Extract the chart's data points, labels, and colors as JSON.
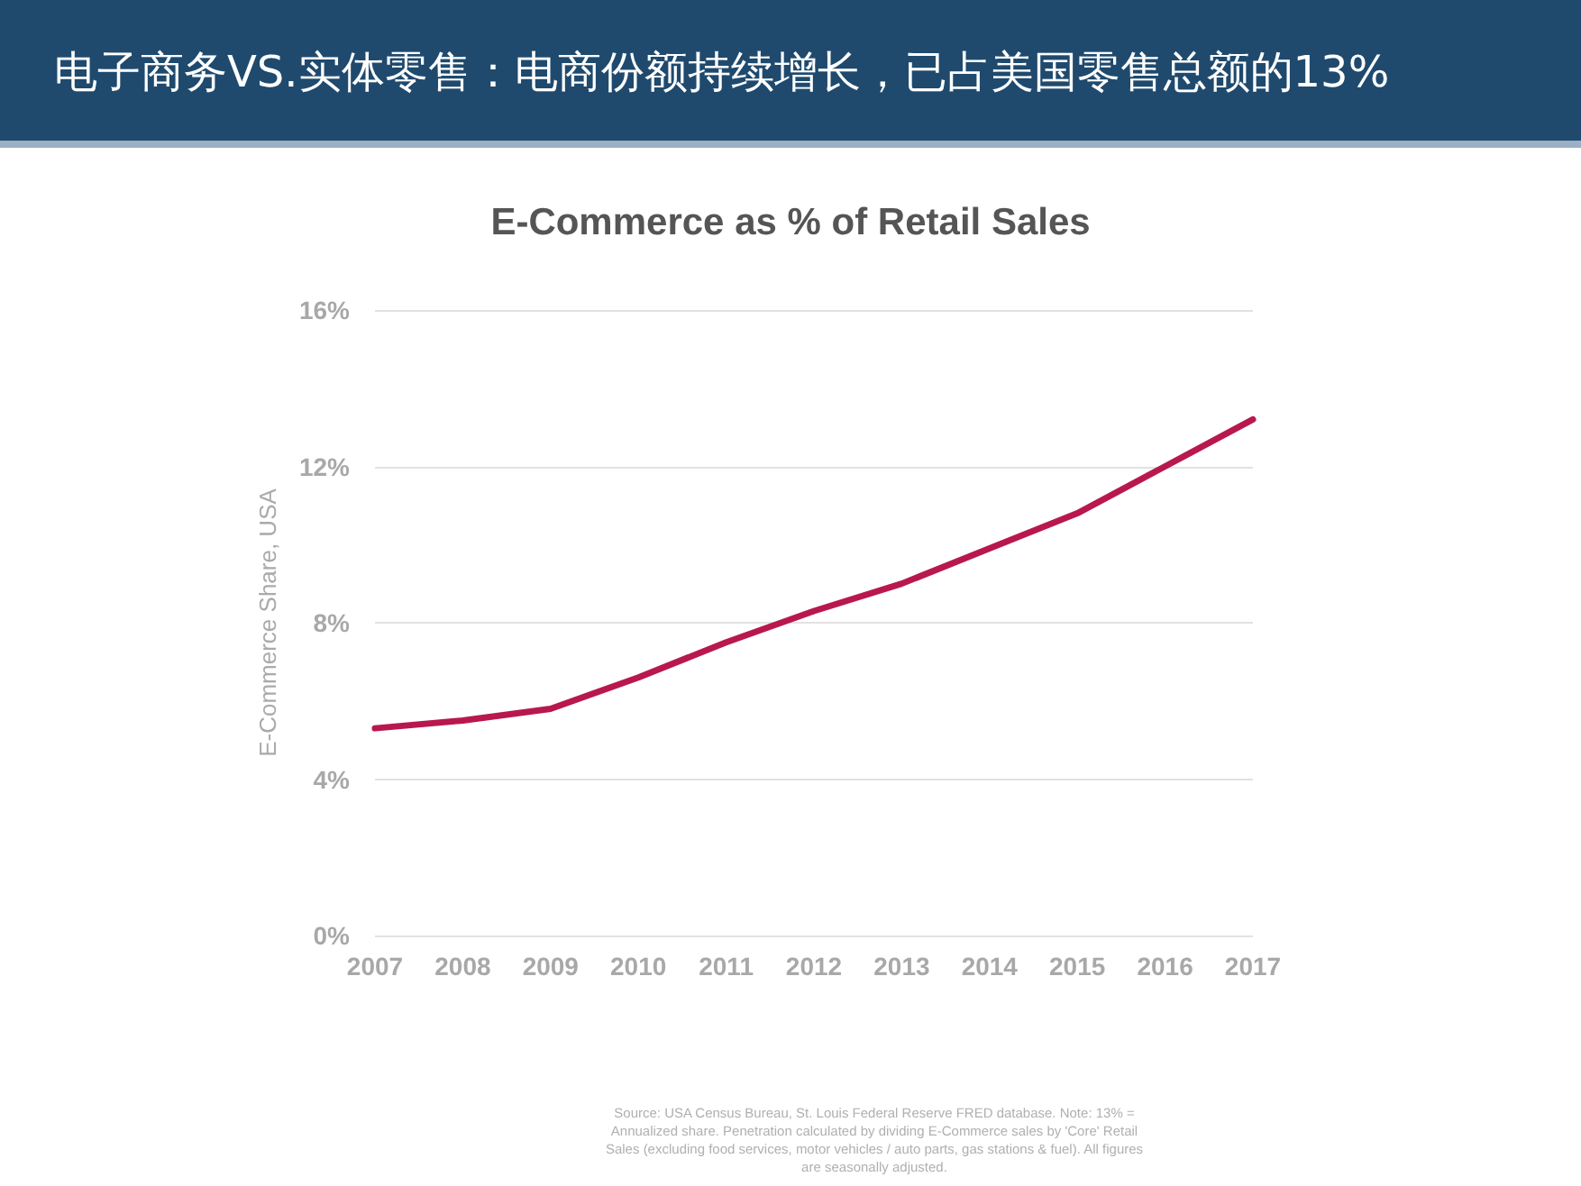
{
  "chart_data": {
    "type": "line",
    "title": "电子商务VS.实体零售：电商份额持续增长，已占美国零售总额的13%",
    "subtitle": "E-Commerce as % of Retail Sales",
    "ylabel": "E-Commerce Share, USA",
    "x": [
      2007,
      2008,
      2009,
      2010,
      2011,
      2012,
      2013,
      2014,
      2015,
      2016,
      2017
    ],
    "series": [
      {
        "color": "#b8184e",
        "values": [
          5.3,
          5.5,
          5.8,
          6.6,
          7.5,
          8.3,
          9.0,
          9.9,
          10.8,
          12.0,
          13.2
        ]
      }
    ],
    "xlim": [
      2007,
      2017
    ],
    "xticks": [
      2007,
      2008,
      2009,
      2010,
      2011,
      2012,
      2013,
      2014,
      2015,
      2016,
      2017
    ],
    "ylim": [
      0,
      16
    ],
    "yticks": [
      {
        "value": 0,
        "label": "0%"
      },
      {
        "value": 4,
        "label": "4%"
      },
      {
        "value": 8,
        "label": "8%"
      },
      {
        "value": 12,
        "label": "12%"
      },
      {
        "value": 16,
        "label": "16%"
      }
    ],
    "grid": "y",
    "marker": "none",
    "line_style": "solid",
    "annotations": [
      "Source: USA Census Bureau, St. Louis Federal Reserve FRED database. Note: 13% = Annualized share.  Penetration calculated by dividing E-Commerce sales by 'Core' Retail Sales (excluding food services, motor vehicles / auto parts, gas stations & fuel). All figures are seasonally adjusted."
    ]
  }
}
